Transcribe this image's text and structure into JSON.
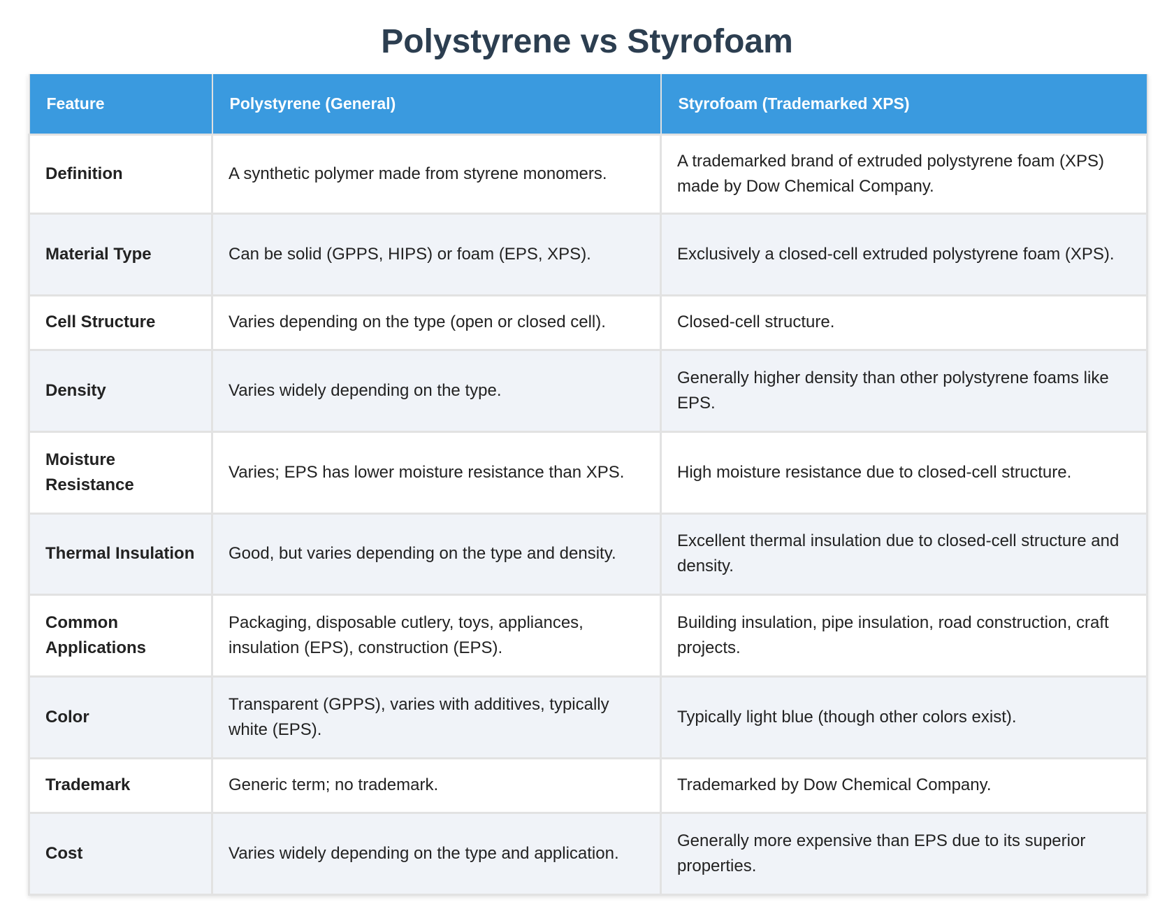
{
  "title": "Polystyrene vs Styrofoam",
  "colors": {
    "header_bg": "#3a9adf",
    "header_text": "#ffffff",
    "title_text": "#2c3e50",
    "row_alt_bg": "#f0f3f8"
  },
  "table": {
    "headers": [
      "Feature",
      "Polystyrene (General)",
      "Styrofoam (Trademarked XPS)"
    ],
    "rows": [
      [
        "Definition",
        "A synthetic polymer made from styrene monomers.",
        "A trademarked brand of extruded polystyrene foam (XPS) made by Dow Chemical Company."
      ],
      [
        "Material Type",
        "Can be solid (GPPS, HIPS) or foam (EPS, XPS).",
        "Exclusively a closed-cell extruded polystyrene foam (XPS)."
      ],
      [
        "Cell Structure",
        "Varies depending on the type (open or closed cell).",
        "Closed-cell structure."
      ],
      [
        "Density",
        "Varies widely depending on the type.",
        "Generally higher density than other polystyrene foams like EPS."
      ],
      [
        "Moisture Resistance",
        "Varies; EPS has lower moisture resistance than XPS.",
        "High moisture resistance due to closed-cell structure."
      ],
      [
        "Thermal Insulation",
        "Good, but varies depending on the type and density.",
        "Excellent thermal insulation due to closed-cell structure and density."
      ],
      [
        "Common Applications",
        "Packaging, disposable cutlery, toys, appliances, insulation (EPS), construction (EPS).",
        "Building insulation, pipe insulation, road construction, craft projects."
      ],
      [
        "Color",
        "Transparent (GPPS), varies with additives, typically white (EPS).",
        "Typically light blue (though other colors exist)."
      ],
      [
        "Trademark",
        "Generic term; no trademark.",
        "Trademarked by Dow Chemical Company."
      ],
      [
        "Cost",
        "Varies widely depending on the type and application.",
        "Generally more expensive than EPS due to its superior properties."
      ]
    ]
  }
}
